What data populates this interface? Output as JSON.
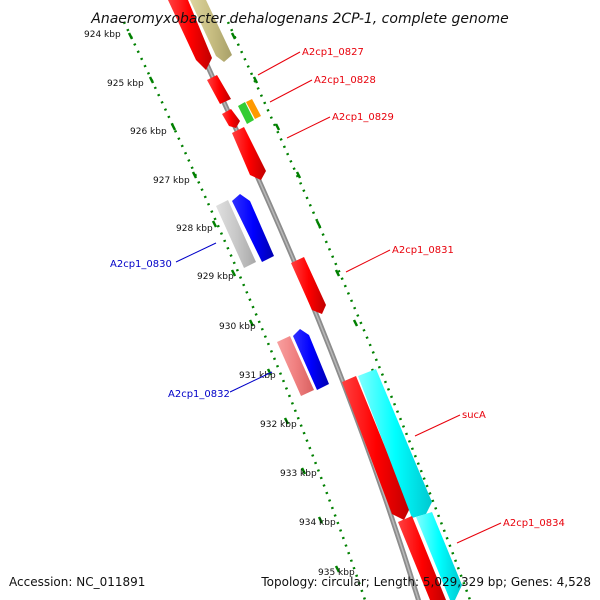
{
  "title": "Anaeromyxobacter dehalogenans 2CP-1, complete genome",
  "footer": {
    "accession": "Accession: NC_011891",
    "summary": "Topology: circular; Length: 5,029,329 bp; Genes: 4,528"
  },
  "ticks": [
    {
      "label": "924 kbp"
    },
    {
      "label": "925 kbp"
    },
    {
      "label": "926 kbp"
    },
    {
      "label": "927 kbp"
    },
    {
      "label": "928 kbp"
    },
    {
      "label": "929 kbp"
    },
    {
      "label": "930 kbp"
    },
    {
      "label": "931 kbp"
    },
    {
      "label": "932 kbp"
    },
    {
      "label": "933 kbp"
    },
    {
      "label": "934 kbp"
    },
    {
      "label": "935 kbp"
    }
  ],
  "gene_labels": [
    {
      "name": "A2cp1_0827",
      "strand": "forward",
      "color": "#e8000b"
    },
    {
      "name": "A2cp1_0828",
      "strand": "forward",
      "color": "#e8000b"
    },
    {
      "name": "A2cp1_0829",
      "strand": "forward",
      "color": "#e8000b"
    },
    {
      "name": "A2cp1_0830",
      "strand": "reverse",
      "color": "#0000c8"
    },
    {
      "name": "A2cp1_0831",
      "strand": "forward",
      "color": "#e8000b"
    },
    {
      "name": "A2cp1_0832",
      "strand": "reverse",
      "color": "#0000c8"
    },
    {
      "name": "sucA",
      "strand": "forward",
      "color": "#e8000b"
    },
    {
      "name": "A2cp1_0834",
      "strand": "forward",
      "color": "#e8000b"
    }
  ],
  "colors": {
    "backbone": "#8c8c8c",
    "forward_cds": "#ff0000",
    "reverse_cds": "#0000ff",
    "forward_feature": "#00ffff",
    "reverse_feature": "#c8c8c8",
    "reverse_feature_2": "#f08080",
    "top_feature": "#c8be82",
    "small_green": "#33cc33",
    "small_orange": "#ff9900",
    "ticks": "#008000"
  }
}
